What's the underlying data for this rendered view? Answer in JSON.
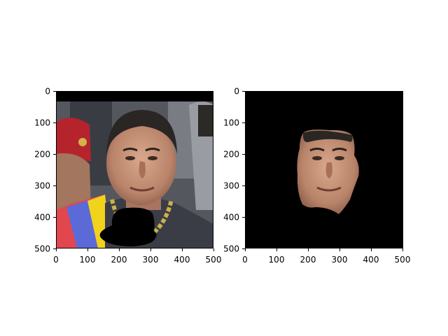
{
  "figure": {
    "background": "#ffffff",
    "panels": [
      {
        "id": "left",
        "content": "photo-with-black-mask-over-chin",
        "x_ticks": [
          "0",
          "100",
          "200",
          "300",
          "400",
          "500"
        ],
        "y_ticks": [
          "0",
          "100",
          "200",
          "300",
          "400",
          "500"
        ],
        "xlim": [
          0,
          500
        ],
        "ylim": [
          500,
          0
        ]
      },
      {
        "id": "right",
        "content": "segmented-face-on-black",
        "x_ticks": [
          "0",
          "100",
          "200",
          "300",
          "400",
          "500"
        ],
        "y_ticks": [
          "0",
          "100",
          "200",
          "300",
          "400",
          "500"
        ],
        "xlim": [
          0,
          500
        ],
        "ylim": [
          500,
          0
        ]
      }
    ]
  },
  "colors": {
    "mask": "#000000",
    "skin": "#c9957a",
    "hair": "#2a2624",
    "suit": "#3b3d46",
    "beret": "#b5232d",
    "sash_yellow": "#f1d21c",
    "sash_blue": "#5b6ad6",
    "sash_red": "#e2474f",
    "chain": "#c8b24a",
    "background_photo": "#6d6f78"
  }
}
